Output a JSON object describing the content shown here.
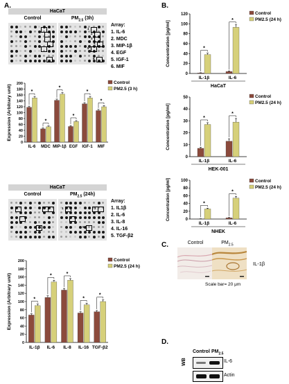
{
  "panels": {
    "A": "A.",
    "B": "B.",
    "C": "C.",
    "D": "D."
  },
  "array1": {
    "header": "HaCaT",
    "control_label": "Control",
    "treated_label": "PM2.5 (3h)",
    "list_title": "Array:",
    "items": [
      "1. IL-6",
      "2. MDC",
      "3. MIP-1β",
      "4. EGF",
      "5. IGF-1",
      "6. MIF"
    ]
  },
  "array2": {
    "header": "HaCaT",
    "control_label": "Control",
    "treated_label": "PM2.5 (24h)",
    "list_title": "Array:",
    "items": [
      "1. IL1β",
      "2. IL-6",
      "3. IL-8",
      "4. IL-16",
      "5. TGF-β2"
    ]
  },
  "box_numbers": {
    "array1": [
      "1",
      "2",
      "3",
      "4",
      "5",
      "6"
    ],
    "array2": [
      "1",
      "2",
      "3",
      "4",
      "5"
    ]
  },
  "colors": {
    "control": "#8b4a3c",
    "treated": "#d6d07a",
    "header_gray": "#d4d4d4"
  },
  "chart_data": [
    {
      "id": "A1",
      "type": "bar",
      "categories": [
        "IL-6",
        "MDC",
        "MIP-1β",
        "EGF",
        "IGF-1",
        "MIF"
      ],
      "series": [
        {
          "name": "Control",
          "values": [
            118,
            45,
            142,
            53,
            130,
            107
          ]
        },
        {
          "name": "PM2.5 (3 h)",
          "values": [
            150,
            52,
            163,
            70,
            150,
            120
          ]
        }
      ],
      "errors": [
        [
          4,
          3,
          4,
          3,
          4,
          4
        ],
        [
          5,
          3,
          5,
          3,
          5,
          4
        ]
      ],
      "ylabel": "Expression (Arbitrary unit)",
      "xlabel": "",
      "ylim": [
        0,
        200
      ],
      "yticks": [
        0,
        20,
        40,
        60,
        80,
        100,
        120,
        140,
        160,
        180,
        200
      ],
      "significance": "*",
      "legend": "top-right"
    },
    {
      "id": "A2",
      "type": "bar",
      "categories": [
        "IL-1β",
        "IL-6",
        "IL-8",
        "IL-16",
        "TGF-β2"
      ],
      "series": [
        {
          "name": "Control",
          "values": [
            67,
            110,
            128,
            72,
            75
          ]
        },
        {
          "name": "PM2.5 (24 h)",
          "values": [
            90,
            148,
            152,
            92,
            100
          ]
        }
      ],
      "errors": [
        [
          3,
          4,
          4,
          3,
          3
        ],
        [
          4,
          4,
          4,
          4,
          4
        ]
      ],
      "ylabel": "Expression (Arbitrary unit)",
      "xlabel": "",
      "ylim": [
        0,
        200
      ],
      "yticks": [
        0,
        20,
        40,
        60,
        80,
        100,
        120,
        140,
        160,
        180,
        200
      ],
      "significance": "*",
      "legend": "top-right"
    },
    {
      "id": "B1",
      "type": "bar",
      "categories": [
        "IL-1β",
        "IL-6"
      ],
      "series": [
        {
          "name": "Control",
          "values": [
            1,
            4
          ]
        },
        {
          "name": "PM2.5 (24 h)",
          "values": [
            38,
            93
          ]
        }
      ],
      "errors": [
        [
          0.5,
          1
        ],
        [
          3,
          5
        ]
      ],
      "ylabel": "Concentration [pg/ml]",
      "xlabel": "HaCaT",
      "ylim": [
        0,
        120
      ],
      "yticks": [
        0,
        20,
        40,
        60,
        80,
        100,
        120
      ],
      "significance": "*",
      "legend": "top-right"
    },
    {
      "id": "B2",
      "type": "bar",
      "categories": [
        "IL-1β",
        "IL-6"
      ],
      "series": [
        {
          "name": "Control",
          "values": [
            7,
            13
          ]
        },
        {
          "name": "PM2.5 (24 h)",
          "values": [
            27,
            29
          ]
        }
      ],
      "errors": [
        [
          0.8,
          2
        ],
        [
          1.5,
          3
        ]
      ],
      "ylabel": "Concentration [pg/ml]",
      "xlabel": "HEK-001",
      "ylim": [
        0,
        50
      ],
      "yticks": [
        0,
        10,
        20,
        30,
        40,
        50
      ],
      "significance": "*",
      "legend": "top-right"
    },
    {
      "id": "B3",
      "type": "bar",
      "categories": [
        "IL-1β",
        "IL-6"
      ],
      "series": [
        {
          "name": "Control",
          "values": [
            0.5,
            3
          ]
        },
        {
          "name": "PM2.5 (24 h)",
          "values": [
            26,
            54
          ]
        }
      ],
      "errors": [
        [
          0.3,
          1
        ],
        [
          2,
          4
        ]
      ],
      "ylabel": "Concentration [pg/ml]",
      "xlabel": "NHEK",
      "ylim": [
        0,
        100
      ],
      "yticks": [
        0,
        20,
        40,
        60,
        80,
        100
      ],
      "significance": "*",
      "legend": "top-right"
    }
  ],
  "ihc": {
    "control_label": "Control",
    "treated_label": "PM2.5",
    "marker_label": "IL-1β",
    "scale_bar": "Scale bar= 20 μm"
  },
  "wb": {
    "control_label": "Control",
    "treated_label": "PM2.5",
    "side_label": "WB",
    "bands": [
      "IL-6",
      "Actin"
    ]
  }
}
